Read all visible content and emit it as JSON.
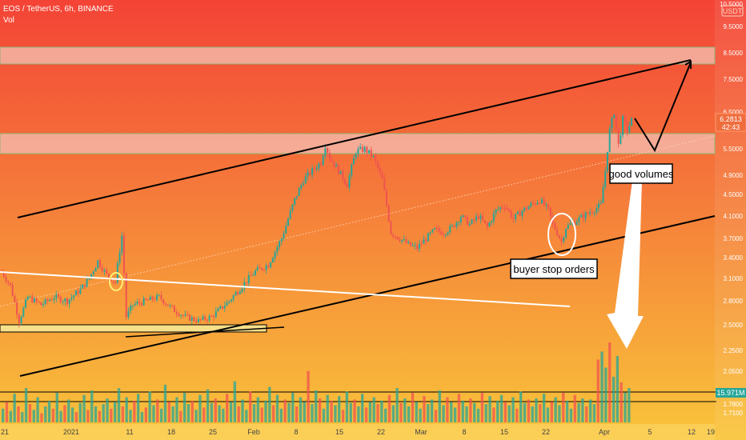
{
  "header": {
    "title": "EOS / TetherUS, 6h, BINANCE",
    "indicator": "Vol",
    "currency_badge": "USDT"
  },
  "colors": {
    "bg_top": "#f44336",
    "bg_mid": "#f57c3a",
    "bg_bottom": "#f9c53a",
    "zone_fill": "#f6b6a6",
    "zone_border": "#7bc47f",
    "candle_up": "#26a69a",
    "candle_down": "#ef5350",
    "channel_line": "#000000",
    "white_line": "#ffffff",
    "price_line": "#ff9a6a"
  },
  "chart_data": {
    "type": "candlestick",
    "symbol": "EOS / TetherUS",
    "interval": "6h",
    "exchange": "BINANCE",
    "y_axis": {
      "ticks": [
        "10.5000",
        "9.5000",
        "8.5000",
        "7.5000",
        "6.5000",
        "5.5000",
        "4.9000",
        "4.5000",
        "4.1000",
        "3.7000",
        "3.4000",
        "3.1000",
        "2.8000",
        "2.5000",
        "2.2500",
        "2.0500",
        "1.7800",
        "1.7100"
      ],
      "current_price": "6.2813",
      "countdown": "42:43",
      "volume_label": "15.971M"
    },
    "x_axis": {
      "ticks": [
        "21",
        "2021",
        "11",
        "18",
        "25",
        "Feb",
        "8",
        "15",
        "22",
        "Mar",
        "8",
        "15",
        "22",
        "Apr",
        "5",
        "12",
        "19"
      ]
    },
    "price_path": [
      [
        0,
        3.2
      ],
      [
        4,
        3.0
      ],
      [
        8,
        2.55
      ],
      [
        12,
        2.85
      ],
      [
        18,
        2.75
      ],
      [
        24,
        2.85
      ],
      [
        30,
        2.8
      ],
      [
        36,
        2.95
      ],
      [
        40,
        3.1
      ],
      [
        44,
        3.35
      ],
      [
        48,
        3.15
      ],
      [
        52,
        3.05
      ],
      [
        55,
        3.75
      ],
      [
        57,
        2.6
      ],
      [
        60,
        2.75
      ],
      [
        66,
        2.8
      ],
      [
        72,
        2.85
      ],
      [
        78,
        2.7
      ],
      [
        84,
        2.6
      ],
      [
        90,
        2.55
      ],
      [
        96,
        2.6
      ],
      [
        100,
        2.7
      ],
      [
        104,
        2.8
      ],
      [
        110,
        3.0
      ],
      [
        116,
        3.2
      ],
      [
        122,
        3.3
      ],
      [
        128,
        3.7
      ],
      [
        134,
        4.4
      ],
      [
        138,
        4.8
      ],
      [
        142,
        5.0
      ],
      [
        146,
        5.2
      ],
      [
        148,
        5.6
      ],
      [
        150,
        5.3
      ],
      [
        154,
        5.0
      ],
      [
        158,
        4.7
      ],
      [
        162,
        5.45
      ],
      [
        166,
        5.5
      ],
      [
        170,
        5.3
      ],
      [
        174,
        4.8
      ],
      [
        178,
        3.8
      ],
      [
        182,
        3.7
      ],
      [
        186,
        3.6
      ],
      [
        190,
        3.55
      ],
      [
        194,
        3.7
      ],
      [
        198,
        3.85
      ],
      [
        202,
        3.8
      ],
      [
        206,
        3.9
      ],
      [
        210,
        4.1
      ],
      [
        214,
        3.95
      ],
      [
        218,
        4.1
      ],
      [
        222,
        3.9
      ],
      [
        226,
        4.2
      ],
      [
        230,
        4.3
      ],
      [
        234,
        4.05
      ],
      [
        238,
        4.2
      ],
      [
        242,
        4.3
      ],
      [
        246,
        4.4
      ],
      [
        250,
        4.2
      ],
      [
        252,
        3.95
      ],
      [
        254,
        3.8
      ],
      [
        256,
        3.65
      ],
      [
        258,
        3.9
      ],
      [
        262,
        4.0
      ],
      [
        266,
        4.1
      ],
      [
        270,
        4.2
      ],
      [
        274,
        4.3
      ],
      [
        276,
        5.0
      ],
      [
        278,
        6.0
      ],
      [
        280,
        6.5
      ],
      [
        282,
        5.6
      ],
      [
        284,
        6.3
      ],
      [
        286,
        6.0
      ],
      [
        288,
        6.28
      ]
    ],
    "volume_bars": [
      12,
      18,
      10,
      25,
      14,
      9,
      30,
      16,
      11,
      22,
      8,
      14,
      19,
      12,
      26,
      10,
      15,
      20,
      13,
      9,
      17,
      24,
      11,
      28,
      14,
      10,
      16,
      21,
      12,
      18,
      30,
      14,
      22,
      11,
      19,
      25,
      9,
      13,
      27,
      15,
      20,
      12,
      33,
      18,
      14,
      22,
      10,
      26,
      16,
      19,
      11,
      24,
      13,
      29,
      17,
      21,
      15,
      12,
      25,
      18,
      36,
      14,
      20,
      11,
      27,
      16,
      22,
      13,
      19,
      31,
      15,
      24,
      12,
      20,
      17,
      26,
      14,
      22,
      18,
      45,
      16,
      28,
      21,
      12,
      24,
      19,
      15,
      23,
      11,
      27,
      17,
      20,
      14,
      25,
      13,
      18,
      22,
      16,
      19,
      12,
      24,
      15,
      30,
      17,
      21,
      14,
      26,
      18,
      12,
      23,
      16,
      20,
      11,
      28,
      15,
      22,
      18,
      13,
      25,
      19,
      14,
      21,
      17,
      12,
      26,
      16,
      23,
      13,
      19,
      24,
      18,
      15,
      22,
      12,
      27,
      17,
      20,
      14,
      21,
      16,
      25,
      13,
      18,
      22,
      15,
      26,
      19,
      12,
      24,
      17,
      21,
      14,
      20,
      16,
      55,
      62,
      48,
      70,
      40,
      58,
      35,
      26,
      30
    ]
  },
  "annotations": {
    "good_volumes": "good volumes",
    "buyer_stop_orders": "buyer stop orders"
  }
}
